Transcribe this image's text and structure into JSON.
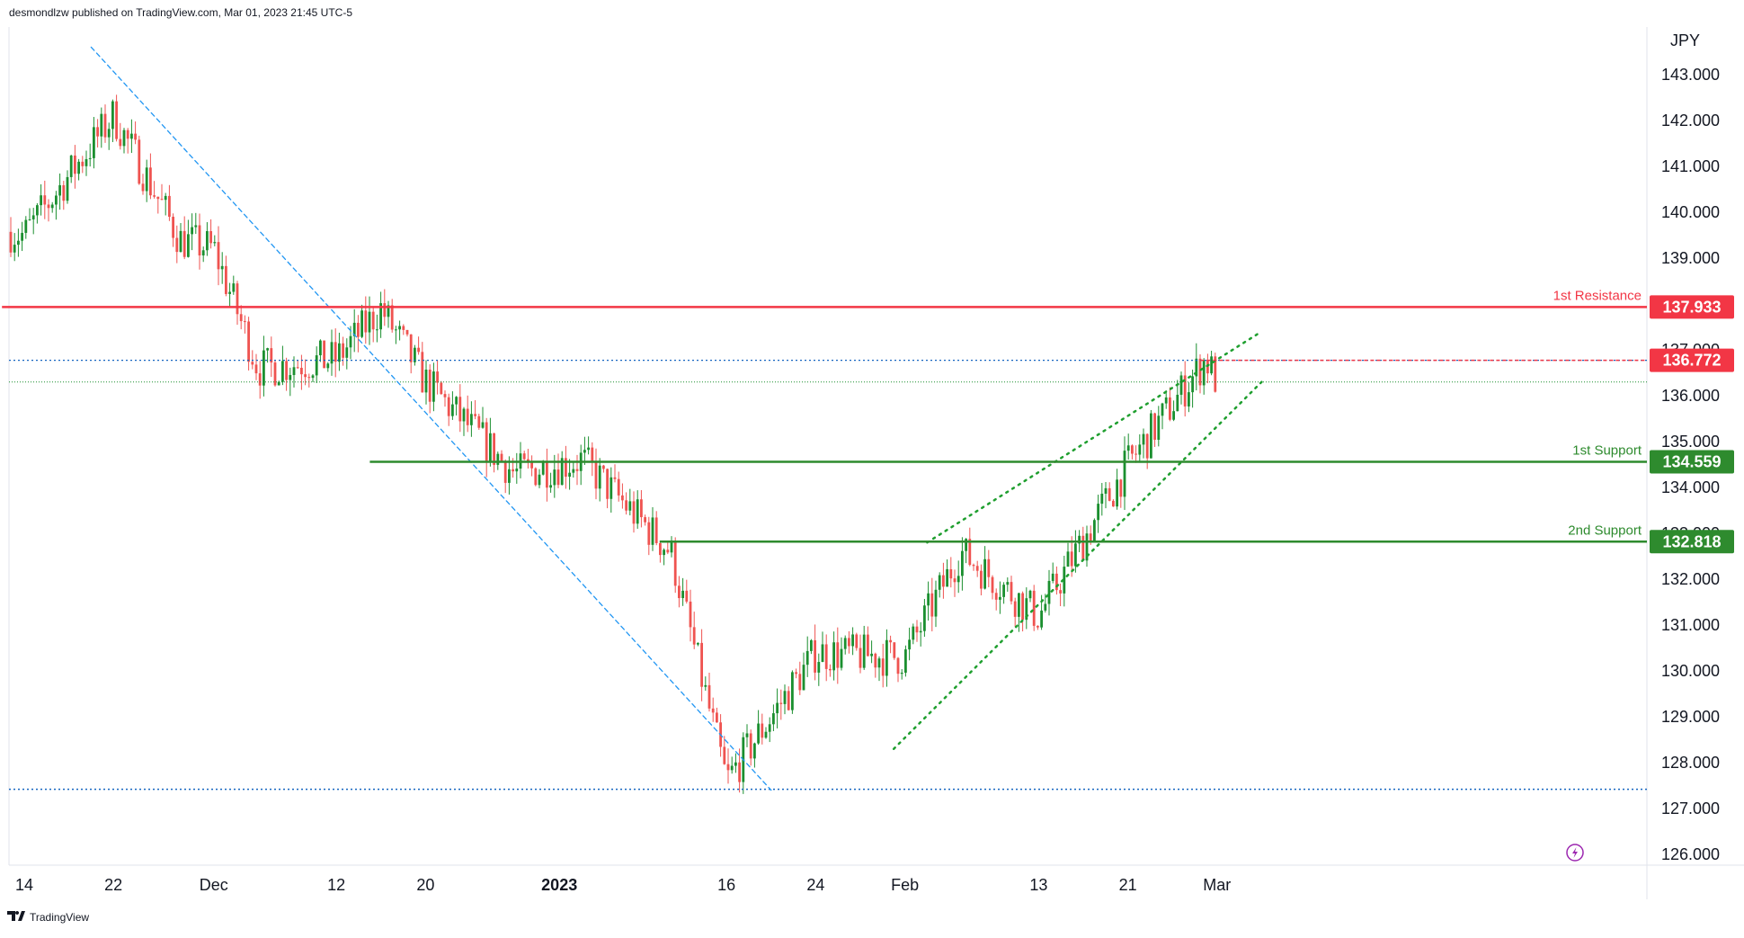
{
  "header": {
    "published": "desmondlzw published on TradingView.com, Mar 01, 2023 21:45 UTC-5"
  },
  "footer": {
    "brand": "TradingView"
  },
  "colors": {
    "up": "#26a69a",
    "up_body": "#1b8f2f",
    "down": "#ef5350",
    "resistance": "#f23645",
    "support": "#2e8b2e",
    "trend": "#2196f3",
    "channel": "#1f9f2f",
    "axis_text": "#131722",
    "grid_border": "#e0e3eb"
  },
  "chart_data": {
    "type": "candlestick",
    "symbol_currency": "JPY",
    "y_axis": {
      "currency": "JPY",
      "ylim": [
        125.5,
        143.8
      ],
      "ticks": [
        "143.000",
        "142.000",
        "141.000",
        "140.000",
        "139.000",
        "138.000",
        "137.000",
        "136.000",
        "135.000",
        "134.000",
        "133.000",
        "132.000",
        "131.000",
        "130.000",
        "129.000",
        "128.000",
        "127.000",
        "126.000"
      ]
    },
    "x_axis": {
      "tick_labels": [
        "14",
        "22",
        "Dec",
        "12",
        "20",
        "2023",
        "16",
        "24",
        "Feb",
        "13",
        "21",
        "Mar"
      ],
      "bold_labels": [
        "2023"
      ]
    },
    "levels": [
      {
        "label": "1st Resistance",
        "value": 137.933,
        "price_tag": "137.933",
        "kind": "resistance"
      },
      {
        "label": "1st Support",
        "value": 134.559,
        "price_tag": "134.559",
        "kind": "support"
      },
      {
        "label": "2nd Support",
        "value": 132.818,
        "price_tag": "132.818",
        "kind": "support"
      }
    ],
    "marked_price": {
      "value": 136.772,
      "price_tag": "136.772"
    },
    "current_price": 136.3,
    "low_line": 127.42,
    "path_anchor_dates": [
      "Nov 09",
      "Nov 14",
      "Nov 22",
      "Nov 28",
      "Dec 01",
      "Dec 05",
      "Dec 12",
      "Dec 16",
      "Dec 20",
      "Dec 28",
      "Jan 03",
      "Jan 11",
      "Jan 16",
      "Jan 24",
      "Feb 01",
      "Feb 06",
      "Feb 13",
      "Feb 21",
      "Feb 28",
      "Mar 01"
    ],
    "path_anchor_closes": [
      139.8,
      139.5,
      142.1,
      139.4,
      139.2,
      136.6,
      136.8,
      137.9,
      136.3,
      134.3,
      134.6,
      132.6,
      127.6,
      130.4,
      130.3,
      132.6,
      131.2,
      134.5,
      136.8,
      136.3
    ],
    "trendlines": [
      {
        "name": "descending",
        "style": "dashed",
        "from": {
          "date": "Nov 20",
          "value": 143.6
        },
        "to": {
          "date": "Jan 20",
          "value": 127.4
        }
      },
      {
        "name": "channel-upper",
        "style": "dotted",
        "from": {
          "date": "Feb 03",
          "value": 132.8
        },
        "to": {
          "date": "Mar 05",
          "value": 137.4
        }
      },
      {
        "name": "channel-lower",
        "style": "dotted",
        "from": {
          "date": "Jan 31",
          "value": 128.3
        },
        "to": {
          "date": "Mar 05",
          "value": 136.3
        }
      }
    ]
  }
}
